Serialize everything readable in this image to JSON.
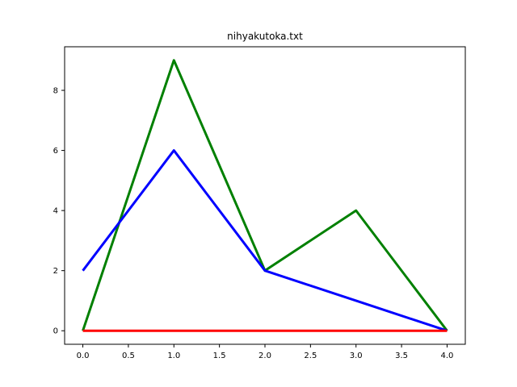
{
  "chart_data": {
    "type": "line",
    "title": "nihyakutoka.txt",
    "xlabel": "",
    "ylabel": "",
    "xlim": [
      -0.2,
      4.2
    ],
    "ylim": [
      -0.45,
      9.45
    ],
    "x_ticks": [
      0.0,
      0.5,
      1.0,
      1.5,
      2.0,
      2.5,
      3.0,
      3.5,
      4.0
    ],
    "x_tick_labels": [
      "0.0",
      "0.5",
      "1.0",
      "1.5",
      "2.0",
      "2.5",
      "3.0",
      "3.5",
      "4.0"
    ],
    "y_ticks": [
      0,
      2,
      4,
      6,
      8
    ],
    "y_tick_labels": [
      "0",
      "2",
      "4",
      "6",
      "8"
    ],
    "grid": false,
    "series": [
      {
        "color": "#008000",
        "x": [
          0,
          1,
          2,
          3,
          4
        ],
        "values": [
          0,
          9,
          2,
          4,
          0
        ]
      },
      {
        "color": "#0000ff",
        "x": [
          0,
          1,
          2,
          3,
          4
        ],
        "values": [
          2,
          6,
          2,
          1,
          0
        ]
      },
      {
        "color": "#ff0000",
        "x": [
          0,
          1,
          2,
          3,
          4
        ],
        "values": [
          0,
          0,
          0,
          0,
          0
        ]
      }
    ]
  }
}
